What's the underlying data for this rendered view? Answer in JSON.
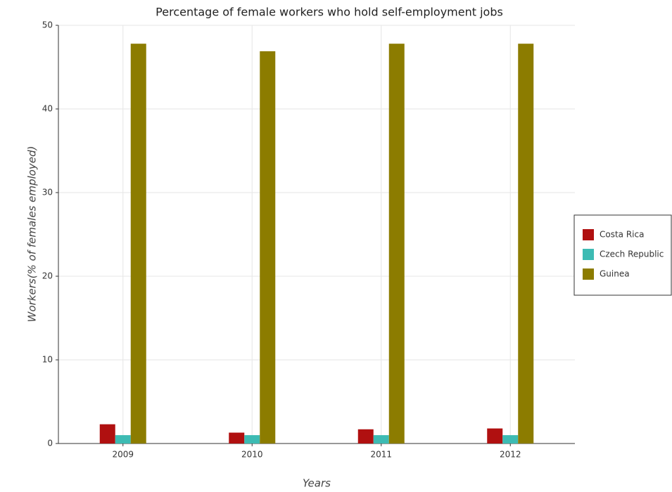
{
  "chart_data": {
    "type": "bar",
    "title": "Percentage of female workers who hold self-employment jobs",
    "x_label": "Years",
    "y_label": "Workers(% of females employed)",
    "categories": [
      "2009",
      "2010",
      "2011",
      "2012"
    ],
    "series": [
      {
        "name": "Costa Rica",
        "color": "#b01010",
        "values": [
          2.3,
          1.3,
          1.7,
          1.8
        ]
      },
      {
        "name": "Czech Republic",
        "color": "#3dbbb3",
        "values": [
          1,
          1,
          1,
          1
        ]
      },
      {
        "name": "Guinea",
        "color": "#8c7c00",
        "values": [
          47.8,
          46.9,
          47.8,
          47.8
        ]
      }
    ],
    "ylim": [
      0,
      50
    ],
    "yticks": [
      0,
      10,
      20,
      30,
      40,
      50
    ],
    "grid": true,
    "legend": "right"
  }
}
